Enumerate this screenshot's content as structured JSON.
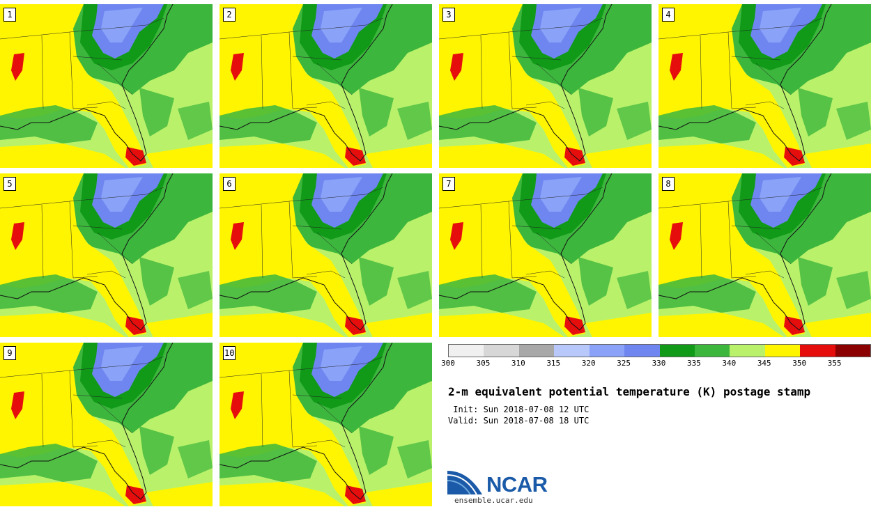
{
  "stamps": [
    {
      "label": "1"
    },
    {
      "label": "2"
    },
    {
      "label": "3"
    },
    {
      "label": "4"
    },
    {
      "label": "5"
    },
    {
      "label": "6"
    },
    {
      "label": "7"
    },
    {
      "label": "8"
    },
    {
      "label": "9"
    },
    {
      "label": "10"
    }
  ],
  "colorbar": {
    "colors": [
      "#f0f0f0",
      "#d7d7d7",
      "#a8a8a8",
      "#b8c8fb",
      "#8aa3f8",
      "#6f86f0",
      "#109a18",
      "#3db63d",
      "#b9f26a",
      "#fff500",
      "#e60d0d",
      "#8b0000"
    ],
    "labels": [
      "300",
      "305",
      "310",
      "315",
      "320",
      "325",
      "330",
      "335",
      "340",
      "345",
      "350",
      "355"
    ]
  },
  "title": "2-m equivalent potential temperature (K) postage stamp",
  "init": " Init: Sun 2018-07-08 12 UTC",
  "valid": "Valid: Sun 2018-07-08 18 UTC",
  "logo": {
    "text": "NCAR",
    "site": "ensemble.ucar.edu"
  }
}
